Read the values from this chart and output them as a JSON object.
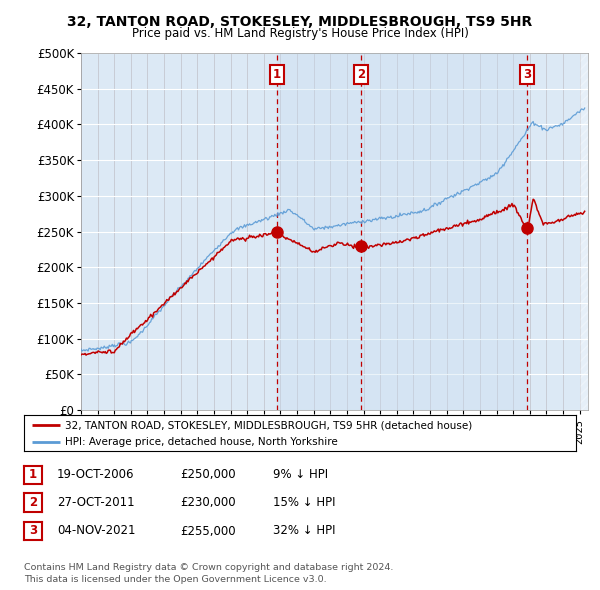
{
  "title1": "32, TANTON ROAD, STOKESLEY, MIDDLESBROUGH, TS9 5HR",
  "title2": "Price paid vs. HM Land Registry's House Price Index (HPI)",
  "legend_line1": "32, TANTON ROAD, STOKESLEY, MIDDLESBROUGH, TS9 5HR (detached house)",
  "legend_line2": "HPI: Average price, detached house, North Yorkshire",
  "transactions": [
    {
      "num": 1,
      "date": "19-OCT-2006",
      "price": 250000,
      "pct": "9%",
      "dir": "↓"
    },
    {
      "num": 2,
      "date": "27-OCT-2011",
      "price": 230000,
      "pct": "15%",
      "dir": "↓"
    },
    {
      "num": 3,
      "date": "04-NOV-2021",
      "price": 255000,
      "pct": "32%",
      "dir": "↓"
    }
  ],
  "footnote": "Contains HM Land Registry data © Crown copyright and database right 2024.\nThis data is licensed under the Open Government Licence v3.0.",
  "hpi_color": "#5b9bd5",
  "price_color": "#c00000",
  "vline_color": "#c00000",
  "bg_plot": "#dce9f5",
  "bg_shade": "#dce9f5",
  "bg_fig": "#ffffff",
  "ylim": [
    0,
    500000
  ],
  "yticks": [
    0,
    50000,
    100000,
    150000,
    200000,
    250000,
    300000,
    350000,
    400000,
    450000,
    500000
  ],
  "transaction_years": [
    2006.8,
    2011.85,
    2021.85
  ],
  "transaction_prices": [
    250000,
    230000,
    255000
  ],
  "xmin": 1995,
  "xmax": 2025.5
}
